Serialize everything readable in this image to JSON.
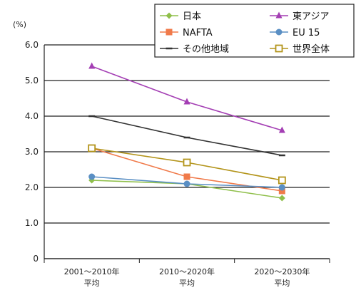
{
  "chart_data": {
    "type": "line",
    "ylabel": "(%)",
    "ylim": [
      0,
      6.0
    ],
    "yticks": [
      "0",
      "1.0",
      "2.0",
      "3.0",
      "4.0",
      "5.0",
      "6.0"
    ],
    "categories": [
      {
        "line1": "2001～2010年",
        "line2": "平均"
      },
      {
        "line1": "2010～2020年",
        "line2": "平均"
      },
      {
        "line1": "2020～2030年",
        "line2": "平均"
      }
    ],
    "grid": "horizontal",
    "legend_position": "top-right",
    "series": [
      {
        "name": "日本",
        "values": [
          2.2,
          2.1,
          1.7
        ],
        "color": "#8fbf4a",
        "marker": "diamond"
      },
      {
        "name": "NAFTA",
        "values": [
          3.1,
          2.3,
          1.9
        ],
        "color": "#f07a4a",
        "marker": "square"
      },
      {
        "name": "その他地域",
        "values": [
          4.0,
          3.4,
          2.9
        ],
        "color": "#333333",
        "marker": "dash"
      },
      {
        "name": "東アジア",
        "values": [
          5.4,
          4.4,
          3.6
        ],
        "color": "#a43fb4",
        "marker": "triangle"
      },
      {
        "name": "EU 15",
        "values": [
          2.3,
          2.1,
          2.0
        ],
        "color": "#5a8fc4",
        "marker": "circle"
      },
      {
        "name": "世界全体",
        "values": [
          3.1,
          2.7,
          2.2
        ],
        "color": "#b3941a",
        "marker": "open-square"
      }
    ]
  }
}
